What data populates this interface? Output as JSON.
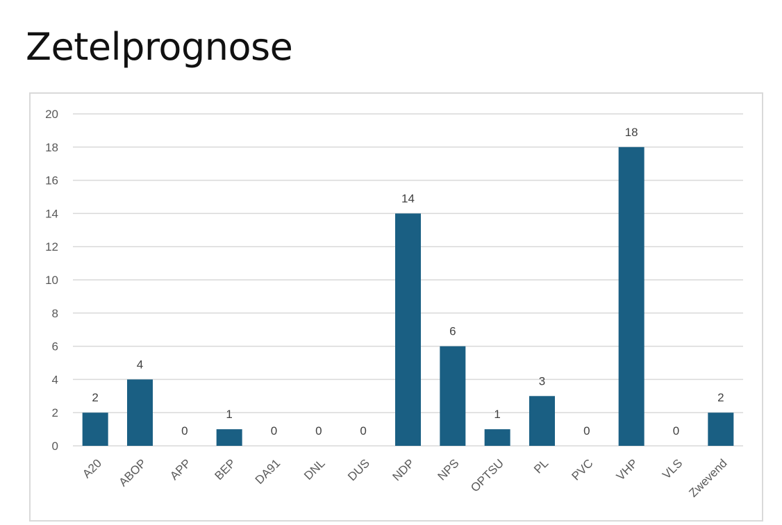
{
  "title": "Zetelprognose",
  "chart_data": {
    "type": "bar",
    "categories": [
      "A20",
      "ABOP",
      "APP",
      "BEP",
      "DA91",
      "DNL",
      "DUS",
      "NDP",
      "NPS",
      "OPTSU",
      "PL",
      "PVC",
      "VHP",
      "VLS",
      "Zwevend"
    ],
    "values": [
      2,
      4,
      0,
      1,
      0,
      0,
      0,
      14,
      6,
      1,
      3,
      0,
      18,
      0,
      2
    ],
    "ylim": [
      0,
      20
    ],
    "yticks": [
      0,
      2,
      4,
      6,
      8,
      10,
      12,
      14,
      16,
      18,
      20
    ],
    "xlabel": "",
    "ylabel": "",
    "grid": true,
    "legend": "none",
    "data_labels": true,
    "bar_color": "#1a5f83",
    "grid_color": "#d9d9d9"
  }
}
